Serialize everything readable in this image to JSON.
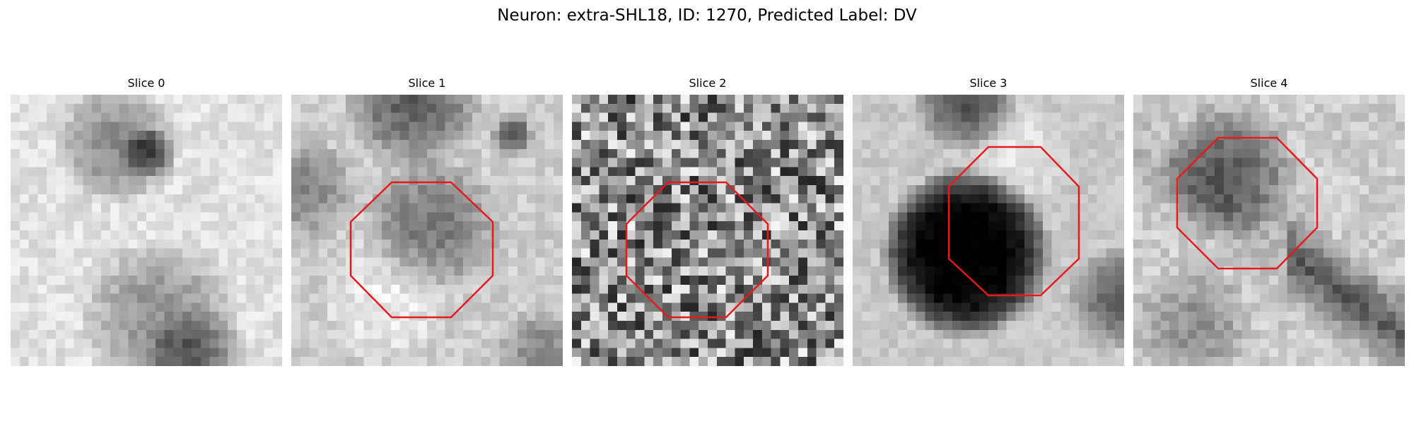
{
  "figure": {
    "title": "Neuron: extra-SHL18, ID: 1270, Predicted Label: DV"
  },
  "slices": [
    {
      "label": "Slice 0",
      "has_roi": false,
      "style": "bright-blob"
    },
    {
      "label": "Slice 1",
      "has_roi": true,
      "style": "soft-cell"
    },
    {
      "label": "Slice 2",
      "has_roi": true,
      "style": "noise"
    },
    {
      "label": "Slice 3",
      "has_roi": true,
      "style": "dark-cell"
    },
    {
      "label": "Slice 4",
      "has_roi": true,
      "style": "diagonal"
    }
  ],
  "colors": {
    "roi_outline": "#e8191c",
    "background": "#ffffff"
  }
}
